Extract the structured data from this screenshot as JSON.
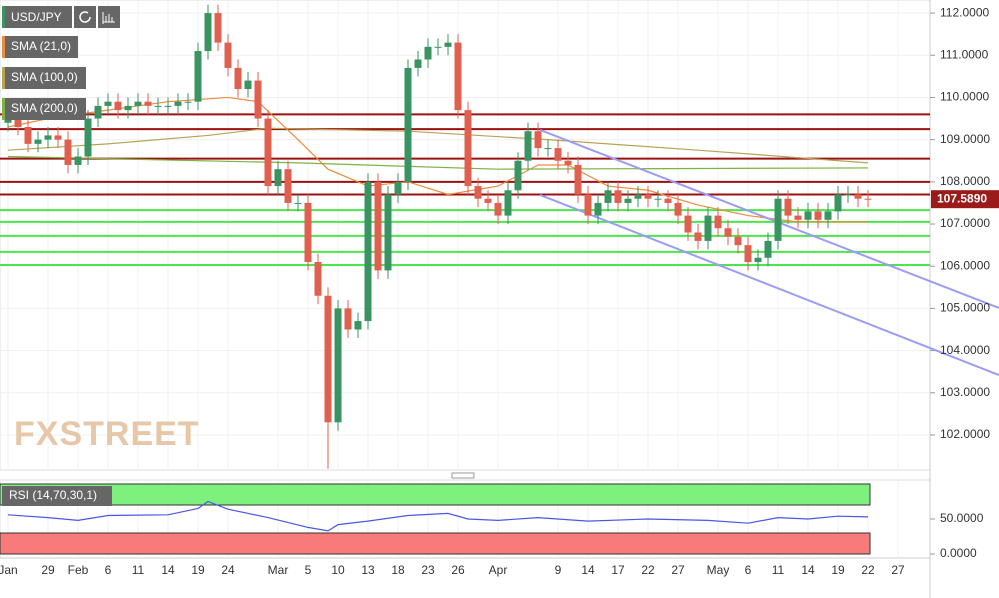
{
  "chart_data": {
    "type": "candlestick",
    "symbol": "USD/JPY",
    "watermark": "FXSTREET",
    "categories": [
      "Jan",
      null,
      null,
      null,
      "29",
      null,
      null,
      "Feb",
      null,
      null,
      "6",
      null,
      null,
      "11",
      null,
      null,
      "14",
      null,
      null,
      "19",
      null,
      null,
      "24",
      null,
      null,
      null,
      null,
      "Mar",
      null,
      null,
      "5",
      null,
      null,
      "10",
      null,
      null,
      "13",
      null,
      null,
      "18",
      null,
      null,
      "23",
      null,
      null,
      "26",
      null,
      null,
      null,
      "Apr",
      null,
      null,
      null,
      null,
      null,
      "9",
      null,
      null,
      "14",
      null,
      null,
      "17",
      null,
      null,
      "22",
      null,
      null,
      "27",
      null,
      null,
      null,
      "May",
      null,
      null,
      "6",
      null,
      null,
      "11",
      null,
      null,
      "14",
      null,
      null,
      "19",
      null,
      null,
      "22",
      null,
      null,
      "27"
    ],
    "open": [
      109.4,
      109.6,
      109.3,
      108.9,
      109.0,
      109.1,
      109.0,
      108.4,
      108.6,
      109.5,
      109.8,
      109.9,
      109.7,
      109.8,
      109.9,
      109.8,
      109.8,
      109.8,
      109.9,
      109.9,
      111.1,
      112.0,
      111.3,
      110.7,
      110.2,
      110.4,
      109.5,
      107.9,
      108.3,
      107.5,
      107.5,
      106.1,
      105.3,
      102.3,
      105.0,
      104.5,
      104.7,
      108.0,
      105.9,
      107.7,
      108.0,
      110.7,
      110.9,
      111.2,
      111.2,
      111.3,
      109.7,
      107.9,
      107.6,
      107.5,
      107.2,
      107.8,
      108.5,
      109.2,
      108.8,
      108.8,
      108.5,
      108.4,
      107.7,
      107.2,
      107.5,
      107.8,
      107.5,
      107.6,
      107.7,
      107.6,
      107.6,
      107.5,
      107.2,
      106.8,
      106.6,
      107.2,
      106.9,
      106.7,
      106.5,
      106.1,
      106.2,
      106.6,
      107.6,
      107.2,
      107.1,
      107.3,
      107.1,
      107.3,
      107.7,
      107.7,
      107.6,
      null,
      null,
      null
    ],
    "high": [
      109.8,
      109.8,
      109.5,
      109.2,
      109.3,
      109.3,
      109.2,
      108.8,
      109.7,
      110.0,
      110.1,
      110.1,
      110.0,
      110.1,
      110.1,
      110.0,
      110.0,
      110.1,
      110.1,
      111.3,
      112.2,
      112.2,
      111.5,
      110.9,
      110.6,
      110.6,
      109.7,
      108.5,
      108.5,
      107.7,
      107.7,
      106.3,
      105.5,
      105.2,
      105.2,
      104.9,
      108.2,
      108.2,
      107.9,
      108.2,
      110.9,
      111.1,
      111.4,
      111.4,
      111.5,
      111.5,
      109.9,
      108.1,
      107.8,
      107.7,
      108.0,
      108.7,
      109.4,
      109.4,
      109.0,
      109.0,
      108.7,
      108.6,
      107.9,
      107.7,
      108.0,
      108.0,
      107.8,
      107.9,
      107.9,
      107.8,
      107.8,
      107.7,
      107.4,
      107.0,
      107.4,
      107.4,
      107.1,
      106.9,
      106.7,
      106.4,
      106.8,
      107.8,
      107.8,
      107.4,
      107.5,
      107.5,
      107.5,
      107.9,
      107.9,
      107.9,
      107.8,
      null,
      null,
      null
    ],
    "low": [
      109.2,
      109.1,
      108.7,
      108.7,
      108.8,
      108.8,
      108.2,
      108.2,
      108.4,
      109.3,
      109.6,
      109.5,
      109.5,
      109.6,
      109.6,
      109.6,
      109.6,
      109.6,
      109.7,
      109.7,
      110.9,
      111.1,
      110.5,
      110.0,
      110.0,
      109.3,
      107.7,
      107.7,
      107.3,
      107.3,
      105.9,
      105.1,
      101.2,
      102.1,
      104.3,
      104.3,
      104.5,
      105.7,
      105.7,
      107.5,
      107.8,
      110.5,
      110.7,
      111.0,
      111.0,
      109.5,
      107.7,
      107.4,
      107.3,
      107.0,
      107.0,
      107.6,
      108.3,
      108.6,
      108.6,
      108.3,
      108.2,
      107.5,
      107.0,
      107.0,
      107.3,
      107.3,
      107.3,
      107.4,
      107.4,
      107.4,
      107.3,
      107.0,
      106.6,
      106.4,
      106.4,
      106.7,
      106.5,
      106.3,
      105.9,
      105.9,
      106.0,
      106.4,
      107.0,
      106.9,
      106.9,
      106.9,
      106.9,
      107.1,
      107.5,
      107.4,
      107.4,
      null,
      null,
      null
    ],
    "close": [
      109.6,
      109.3,
      108.9,
      109.0,
      109.1,
      109.0,
      108.4,
      108.6,
      109.5,
      109.8,
      109.9,
      109.7,
      109.8,
      109.9,
      109.8,
      109.8,
      109.8,
      109.9,
      109.9,
      111.1,
      112.0,
      111.3,
      110.7,
      110.2,
      110.4,
      109.5,
      107.9,
      108.3,
      107.5,
      107.5,
      106.1,
      105.3,
      102.3,
      105.0,
      104.5,
      104.7,
      108.0,
      105.9,
      107.7,
      108.0,
      110.7,
      110.9,
      111.2,
      111.2,
      111.3,
      109.7,
      107.9,
      107.6,
      107.5,
      107.2,
      107.8,
      108.5,
      109.2,
      108.8,
      108.8,
      108.5,
      108.4,
      107.7,
      107.2,
      107.5,
      107.8,
      107.5,
      107.6,
      107.7,
      107.6,
      107.6,
      107.5,
      107.2,
      106.8,
      106.6,
      107.2,
      106.9,
      106.7,
      106.5,
      106.1,
      106.2,
      106.6,
      107.6,
      107.2,
      107.1,
      107.3,
      107.1,
      107.3,
      107.7,
      107.7,
      107.6,
      107.589,
      null,
      null,
      null
    ],
    "up_color": "#3a9462",
    "down_color": "#e0604f",
    "last_price": {
      "value": 107.589,
      "label": "107.5890"
    },
    "last_price_color": "#9b1b1b",
    "ylim": [
      101.17,
      112.31
    ],
    "yticks": [
      {
        "value": 102,
        "label": "102.0000"
      },
      {
        "value": 103,
        "label": "103.0000"
      },
      {
        "value": 104,
        "label": "104.0000"
      },
      {
        "value": 105,
        "label": "105.0000"
      },
      {
        "value": 106,
        "label": "106.0000"
      },
      {
        "value": 107,
        "label": "107.0000"
      },
      {
        "value": 108,
        "label": "108.0000"
      },
      {
        "value": 109,
        "label": "109.0000"
      },
      {
        "value": 110,
        "label": "110.0000"
      },
      {
        "value": 111,
        "label": "111.0000"
      },
      {
        "value": 112,
        "label": "112.0000"
      }
    ],
    "grid": true,
    "overlays": [
      {
        "name": "SMA (21,0)",
        "color": "#f08a3c",
        "x": [
          0,
          4,
          10,
          16,
          22,
          25,
          29,
          32,
          36,
          40,
          44,
          49,
          53,
          56,
          60,
          64,
          69,
          74,
          79,
          86
        ],
        "values": [
          109.3,
          109.5,
          109.7,
          109.9,
          110.0,
          109.9,
          109.0,
          108.3,
          107.9,
          108.0,
          107.7,
          107.9,
          108.4,
          108.4,
          107.9,
          107.8,
          107.45,
          107.2,
          107.05,
          107.05
        ]
      },
      {
        "name": "SMA (100,0)",
        "color": "#b5a553",
        "x": [
          0,
          10,
          20,
          26,
          40,
          54,
          69,
          86
        ],
        "values": [
          108.75,
          108.9,
          109.1,
          109.27,
          109.2,
          109.0,
          108.75,
          108.45
        ]
      },
      {
        "name": "SMA (200,0)",
        "color": "#7cb342",
        "x": [
          0,
          29,
          49,
          86
        ],
        "values": [
          108.6,
          108.45,
          108.3,
          108.33
        ]
      }
    ],
    "hlines": {
      "resistance": {
        "color": "#9b1010",
        "values": [
          109.6,
          109.25,
          108.55,
          108.0,
          107.7
        ]
      },
      "support": {
        "color": "#4ee44e",
        "values": [
          107.33,
          107.05,
          106.72,
          106.34,
          106.03
        ]
      }
    },
    "trendlines": [
      {
        "color": "#9a9cf5",
        "x": [
          53.2,
          99.1
        ],
        "values": [
          109.23,
          105.01
        ]
      },
      {
        "color": "#9a9cf5",
        "x": [
          53.2,
          99.1
        ],
        "values": [
          107.69,
          103.42
        ]
      }
    ],
    "rsi": {
      "name": "RSI (14,70,30,1)",
      "color": "#4a56e6",
      "ylim": [
        0,
        100
      ],
      "yticks": [
        {
          "value": 0,
          "label": "0.0000"
        },
        {
          "value": 50,
          "label": "50.0000"
        }
      ],
      "overbought": {
        "range": [
          70,
          100
        ],
        "color": "#7ef07e"
      },
      "oversold": {
        "range": [
          0,
          30
        ],
        "color": "#f97a7a"
      },
      "x": [
        0,
        4,
        7,
        10,
        16,
        19,
        20,
        22,
        26,
        30,
        32,
        33,
        36,
        40,
        44,
        46,
        49,
        53,
        58,
        64,
        70,
        74,
        77,
        80,
        83,
        86
      ],
      "values": [
        56,
        52,
        48,
        55,
        56,
        65,
        75,
        64,
        52,
        38,
        33,
        42,
        47,
        55,
        58,
        50,
        48,
        52,
        47,
        50,
        48,
        44,
        52,
        50,
        54,
        53
      ]
    }
  }
}
